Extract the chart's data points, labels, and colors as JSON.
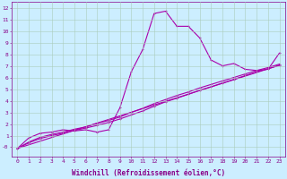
{
  "xlabel": "Windchill (Refroidissement éolien,°C)",
  "xlim": [
    -0.5,
    23.5
  ],
  "ylim": [
    -0.8,
    12.5
  ],
  "xticks": [
    0,
    1,
    2,
    3,
    4,
    5,
    6,
    7,
    8,
    9,
    10,
    11,
    12,
    13,
    14,
    15,
    16,
    17,
    18,
    19,
    20,
    21,
    22,
    23
  ],
  "yticks": [
    0,
    1,
    2,
    3,
    4,
    5,
    6,
    7,
    8,
    9,
    10,
    11,
    12
  ],
  "ytick_labels": [
    "-0",
    "1",
    "2",
    "3",
    "4",
    "5",
    "6",
    "7",
    "8",
    "9",
    "10",
    "11",
    "12"
  ],
  "bg_color": "#cceeff",
  "grid_color": "#aaccbb",
  "line_color": "#aa00aa",
  "curve1_x": [
    0,
    1,
    2,
    3,
    4,
    5,
    6,
    7,
    8,
    9,
    10,
    11,
    12,
    13,
    14,
    15,
    16,
    17,
    18,
    19,
    20,
    21,
    22,
    23
  ],
  "curve1_y": [
    -0.1,
    0.8,
    1.2,
    1.3,
    1.5,
    1.4,
    1.5,
    1.3,
    1.5,
    3.4,
    6.5,
    8.4,
    11.5,
    11.7,
    10.4,
    10.4,
    9.4,
    7.5,
    7.0,
    7.2,
    6.7,
    6.6,
    6.7,
    8.1
  ],
  "curve2_x": [
    0,
    1,
    2,
    3,
    4,
    5,
    6,
    7,
    8,
    9,
    10,
    11,
    12,
    13,
    14,
    15,
    16,
    17,
    18,
    19,
    20,
    21,
    22,
    23
  ],
  "curve2_y": [
    -0.1,
    0.45,
    0.85,
    1.1,
    1.3,
    1.55,
    1.75,
    2.05,
    2.3,
    2.6,
    3.0,
    3.35,
    3.75,
    4.1,
    4.45,
    4.75,
    5.1,
    5.4,
    5.7,
    6.0,
    6.3,
    6.6,
    6.85,
    7.15
  ],
  "curve3_x": [
    0,
    1,
    2,
    3,
    4,
    5,
    6,
    7,
    8,
    9,
    10,
    11,
    12,
    13,
    14,
    15,
    16,
    17,
    18,
    19,
    20,
    21,
    22,
    23
  ],
  "curve3_y": [
    -0.1,
    0.38,
    0.75,
    1.0,
    1.2,
    1.44,
    1.65,
    1.88,
    2.13,
    2.43,
    2.78,
    3.12,
    3.52,
    3.9,
    4.22,
    4.55,
    4.9,
    5.2,
    5.52,
    5.84,
    6.16,
    6.48,
    6.75,
    7.05
  ],
  "curve4_x": [
    0,
    23
  ],
  "curve4_y": [
    -0.1,
    7.05
  ],
  "font_color": "#880088",
  "tick_fontsize": 4.5,
  "label_fontsize": 5.5
}
